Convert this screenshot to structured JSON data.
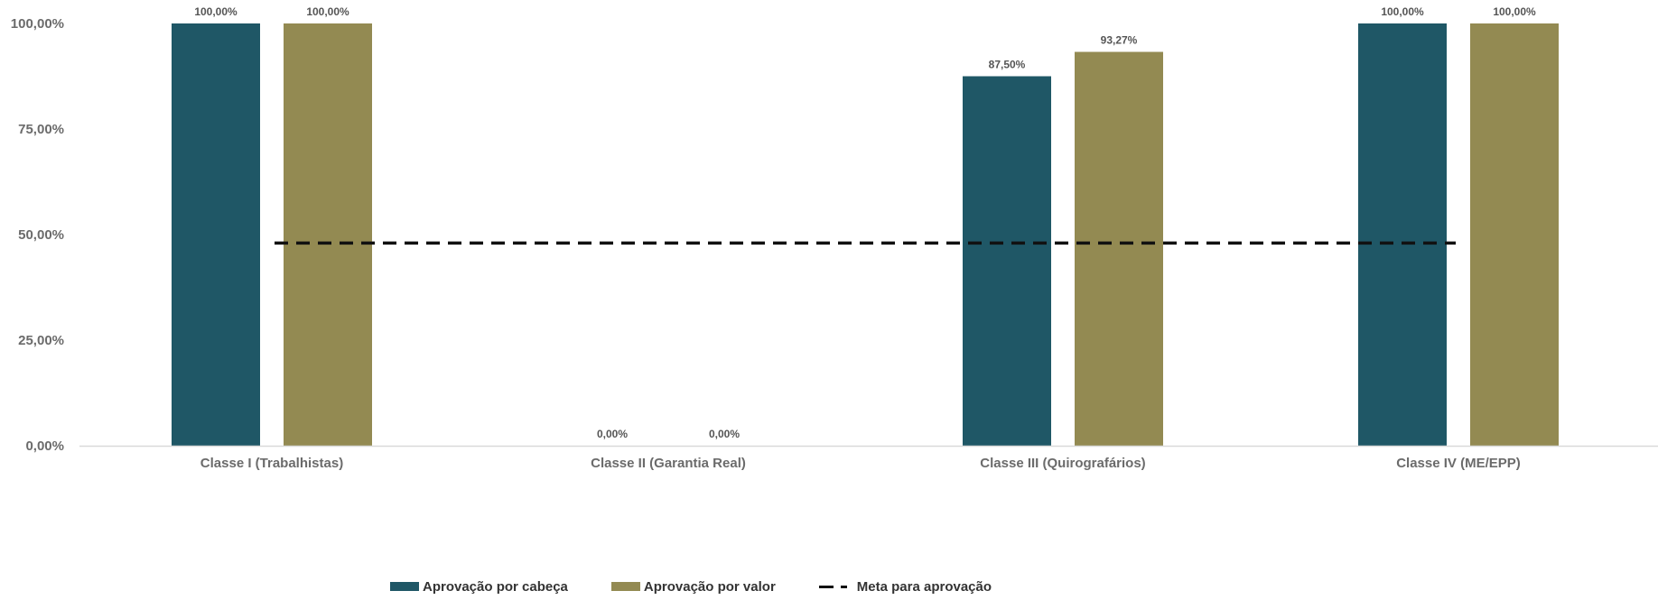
{
  "chart_data": {
    "type": "bar",
    "categories": [
      "Classe I (Trabalhistas)",
      "Classe II (Garantia Real)",
      "Classe III (Quirografários)",
      "Classe IV (ME/EPP)"
    ],
    "series": [
      {
        "name": "Aprovação por cabeça",
        "values": [
          100.0,
          0.0,
          87.5,
          100.0
        ],
        "labels": [
          "100,00%",
          "0,00%",
          "87,50%",
          "100,00%"
        ],
        "color": "#1f5766"
      },
      {
        "name": "Aprovação por valor",
        "values": [
          100.0,
          0.0,
          93.27,
          100.0
        ],
        "labels": [
          "100,00%",
          "0,00%",
          "93,27%",
          "100,00%"
        ],
        "color": "#938a52"
      }
    ],
    "target_line": {
      "name": "Meta para aprovação",
      "value": 48,
      "style": "dashed",
      "color": "#111111"
    },
    "yticks": [
      "0,00%",
      "25,00%",
      "50,00%",
      "75,00%",
      "100,00%"
    ],
    "ylim": [
      0,
      100
    ],
    "grid": false,
    "legend_position": "bottom"
  },
  "legend": {
    "items": [
      "Aprovação por cabeça",
      "Aprovação por valor",
      "Meta para aprovação"
    ]
  }
}
